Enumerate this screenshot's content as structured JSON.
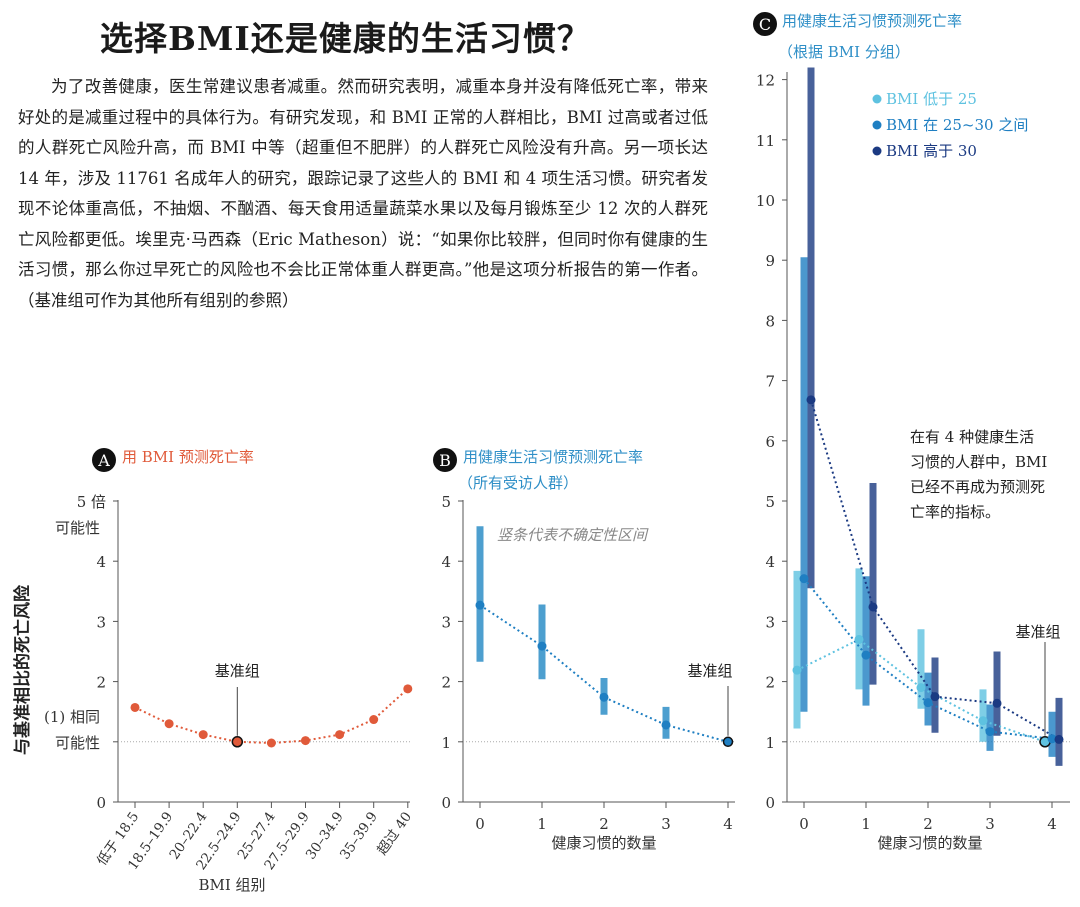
{
  "title": "选择BMI还是健康的生活习惯？",
  "intro": "为了改善健康，医生常建议患者减重。然而研究表明，减重本身并没有降低死亡率，带来好处的是减重过程中的具体行为。有研究发现，和 BMI 正常的人群相比，BMI 过高或者过低的人群死亡风险升高，而 BMI 中等（超重但不肥胖）的人群死亡风险没有升高。另一项长达 14 年，涉及 11761 名成年人的研究，跟踪记录了这些人的 BMI 和 4 项生活习惯。研究者发现不论体重高低，不抽烟、不酗酒、每天食用适量蔬菜水果以及每月锻炼至少 12 次的人群死亡风险都更低。埃里克·马西森（Eric Matheson）说：“如果你比较胖，但同时你有健康的生活习惯，那么你过早死亡的风险也不会比正常体重人群更高。”他是这项分析报告的第一作者。（基准组可作为其他所有组别的参照）",
  "colors": {
    "panel_a": "#e05a3a",
    "panel_b": "#2f8fc7",
    "bmi_low": "#5ec2e0",
    "bmi_mid": "#1f7fc2",
    "bmi_high": "#1b3a82",
    "axis": "#555555",
    "reference_line": "#aaaaaa"
  },
  "y_axis_label": "与基准相比的死亡风险",
  "chart_data": [
    {
      "id": "A",
      "type": "line",
      "badge": "A",
      "title": "用 BMI 预测死亡率",
      "xlabel": "BMI 组别",
      "categories": [
        "低于 18.5",
        "18.5–19.9",
        "20–22.4",
        "22.5–24.9",
        "25–27.4",
        "27.5–29.9",
        "30–34.9",
        "35–39.9",
        "超过 40"
      ],
      "values": [
        1.57,
        1.3,
        1.12,
        1.0,
        0.98,
        1.02,
        1.12,
        1.37,
        1.88
      ],
      "ylim": [
        0,
        5
      ],
      "ytick_labels": [
        "0",
        "1",
        "2",
        "3",
        "4",
        "5 倍"
      ],
      "y_top_note": "可能性",
      "y_ref_note_1": "(1) 相同",
      "y_ref_note_2": "可能性",
      "reference": {
        "index": 3,
        "label": "基准组"
      }
    },
    {
      "id": "B",
      "type": "line",
      "badge": "B",
      "title": "用健康生活习惯预测死亡率",
      "title_line2": "（所有受访人群）",
      "xlabel": "健康习惯的数量",
      "x": [
        0,
        1,
        2,
        3,
        4
      ],
      "ylim": [
        0,
        5
      ],
      "ytick_labels": [
        "0",
        "1",
        "2",
        "3",
        "4",
        "5"
      ],
      "note": "竖条代表不确定性区间",
      "series": [
        {
          "values": [
            3.27,
            2.59,
            1.74,
            1.28,
            1.0
          ],
          "ci_low": [
            2.33,
            2.04,
            1.45,
            1.05,
            1.0
          ],
          "ci_high": [
            4.58,
            3.28,
            2.06,
            1.58,
            1.0
          ]
        }
      ],
      "reference": {
        "index": 4,
        "label": "基准组"
      }
    },
    {
      "id": "C",
      "type": "line",
      "badge": "C",
      "title": "用健康生活习惯预测死亡率",
      "title_line2": "（根据 BMI 分组）",
      "xlabel": "健康习惯的数量",
      "x": [
        0,
        1,
        2,
        3,
        4
      ],
      "ylim": [
        0,
        12.2
      ],
      "ytick_labels": [
        "0",
        "1",
        "2",
        "3",
        "4",
        "5",
        "6",
        "7",
        "8",
        "9",
        "10",
        "11",
        "12"
      ],
      "annotation": "在有 4 种健康生活习惯的人群中，BMI 已经不再成为预测死亡率的指标。",
      "series": [
        {
          "name": "BMI 低于 25",
          "values": [
            2.19,
            2.7,
            1.9,
            1.35,
            1.0
          ],
          "ci_low": [
            1.22,
            1.87,
            1.55,
            1.0,
            1.0
          ],
          "ci_high": [
            3.84,
            3.88,
            2.87,
            1.87,
            1.0
          ]
        },
        {
          "name": "BMI 在 25~30 之间",
          "values": [
            3.71,
            2.44,
            1.65,
            1.17,
            1.05
          ],
          "ci_low": [
            1.5,
            1.6,
            1.27,
            0.85,
            0.75
          ],
          "ci_high": [
            9.05,
            3.75,
            2.15,
            1.62,
            1.5
          ]
        },
        {
          "name": "BMI 高于 30",
          "values": [
            6.68,
            3.24,
            1.75,
            1.64,
            1.04
          ],
          "ci_low": [
            3.55,
            1.95,
            1.15,
            1.1,
            0.6
          ],
          "ci_high": [
            12.2,
            5.3,
            2.4,
            2.5,
            1.73
          ]
        }
      ],
      "reference": {
        "series": 0,
        "index": 4,
        "label": "基准组"
      }
    }
  ]
}
